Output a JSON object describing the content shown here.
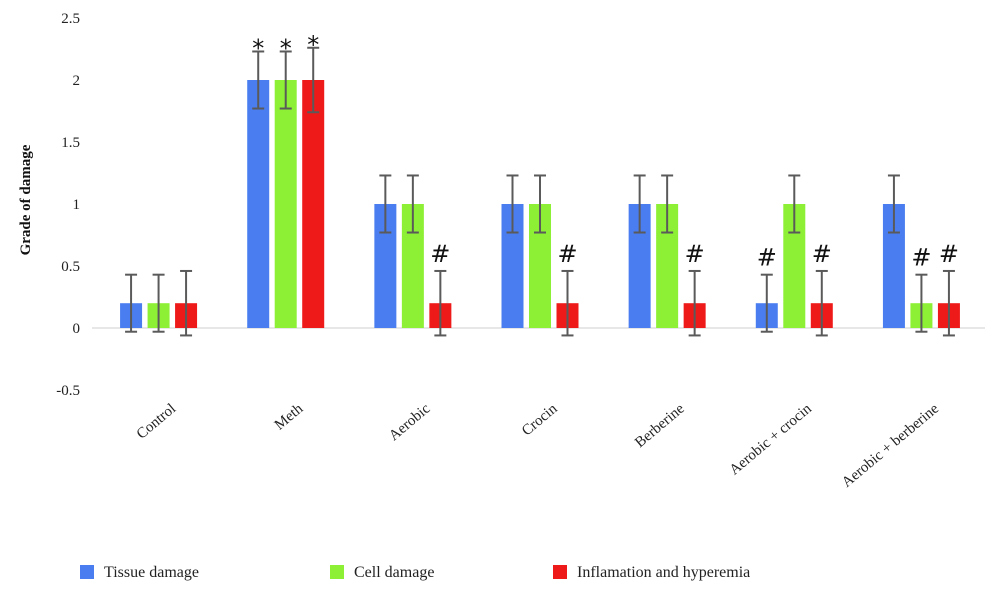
{
  "chart_data": {
    "type": "bar",
    "title": "",
    "xlabel": "",
    "ylabel": "Grade of damage",
    "ylim": [
      -0.5,
      2.5
    ],
    "yticks": [
      "2.5",
      "2",
      "1.5",
      "1",
      "0.5",
      "0",
      "-0.5"
    ],
    "ytick_values": [
      2.5,
      2,
      1.5,
      1,
      0.5,
      0,
      -0.5
    ],
    "categories": [
      "Control",
      "Meth",
      "Aerobic",
      "Crocin",
      "Berberine",
      "Aerobic + crocin",
      "Aerobic + berberine"
    ],
    "series": [
      {
        "name": "Tissue damage",
        "color": "#4a7ef0",
        "values": [
          0.2,
          2,
          1,
          1,
          1,
          0.2,
          1
        ],
        "errors": [
          0.23,
          0.23,
          0.23,
          0.23,
          0.23,
          0.23,
          0.23
        ],
        "marks": [
          "",
          "*",
          "",
          "",
          "",
          "#",
          ""
        ]
      },
      {
        "name": "Cell damage",
        "color": "#8ef034",
        "values": [
          0.2,
          2,
          1,
          1,
          1,
          1,
          0.2
        ],
        "errors": [
          0.23,
          0.23,
          0.23,
          0.23,
          0.23,
          0.23,
          0.23
        ],
        "marks": [
          "",
          "*",
          "",
          "",
          "",
          "",
          "#"
        ]
      },
      {
        "name": "Inflamation and hyperemia",
        "color": "#ee1a1a",
        "values": [
          0.2,
          2,
          0.2,
          0.2,
          0.2,
          0.2,
          0.2
        ],
        "errors": [
          0.26,
          0.26,
          0.26,
          0.26,
          0.26,
          0.26,
          0.26
        ],
        "marks": [
          "",
          "*",
          "#",
          "#",
          "#",
          "#",
          "#"
        ]
      }
    ],
    "grid": false,
    "legend_position": "bottom"
  }
}
